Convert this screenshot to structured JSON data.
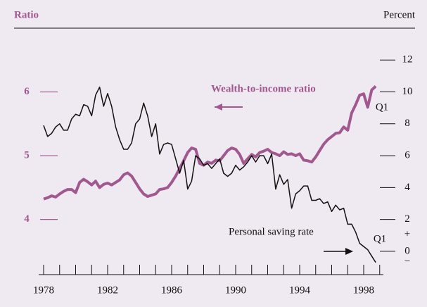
{
  "chart_data": {
    "type": "line",
    "ylabel": "Ratio",
    "y2label": "Percent",
    "x": [
      1978,
      1978.25,
      1978.5,
      1978.75,
      1979,
      1979.25,
      1979.5,
      1979.75,
      1980,
      1980.25,
      1980.5,
      1980.75,
      1981,
      1981.25,
      1981.5,
      1981.75,
      1982,
      1982.25,
      1982.5,
      1982.75,
      1983,
      1983.25,
      1983.5,
      1983.75,
      1984,
      1984.25,
      1984.5,
      1984.75,
      1985,
      1985.25,
      1985.5,
      1985.75,
      1986,
      1986.25,
      1986.5,
      1986.75,
      1987,
      1987.25,
      1987.5,
      1987.75,
      1988,
      1988.25,
      1988.5,
      1988.75,
      1989,
      1989.25,
      1989.5,
      1989.75,
      1990,
      1990.25,
      1990.5,
      1990.75,
      1991,
      1991.25,
      1991.5,
      1991.75,
      1992,
      1992.25,
      1992.5,
      1992.75,
      1993,
      1993.25,
      1993.5,
      1993.75,
      1994,
      1994.25,
      1994.5,
      1994.75,
      1995,
      1995.25,
      1995.5,
      1995.75,
      1996,
      1996.25,
      1996.5,
      1996.75,
      1997,
      1997.25,
      1997.5,
      1997.75,
      1998,
      1998.25,
      1998.5,
      1998.75
    ],
    "series": [
      {
        "name": "Wealth-to-income ratio",
        "color": "#a0588f",
        "axis": "y",
        "values": [
          4.32,
          4.34,
          4.37,
          4.35,
          4.4,
          4.44,
          4.47,
          4.47,
          4.42,
          4.58,
          4.63,
          4.59,
          4.54,
          4.6,
          4.5,
          4.55,
          4.57,
          4.54,
          4.58,
          4.62,
          4.7,
          4.73,
          4.68,
          4.58,
          4.48,
          4.4,
          4.36,
          4.38,
          4.4,
          4.47,
          4.48,
          4.5,
          4.58,
          4.68,
          4.8,
          4.92,
          5.05,
          5.12,
          5.1,
          4.88,
          4.85,
          4.9,
          4.88,
          4.93,
          4.92,
          5.0,
          5.08,
          5.12,
          5.1,
          5.02,
          4.88,
          4.95,
          5.02,
          4.98,
          5.05,
          5.07,
          5.1,
          5.05,
          5.03,
          5.0,
          5.06,
          5.02,
          5.03,
          5.0,
          5.03,
          4.93,
          4.92,
          4.9,
          4.98,
          5.08,
          5.18,
          5.25,
          5.3,
          5.35,
          5.36,
          5.45,
          5.4,
          5.67,
          5.8,
          5.95,
          5.97,
          5.76,
          6.03,
          6.09
        ]
      },
      {
        "name": "Personal saving rate",
        "color": "#111111",
        "axis": "y2",
        "values": [
          7.9,
          7.2,
          7.4,
          7.8,
          8.0,
          7.6,
          7.6,
          8.3,
          8.6,
          8.5,
          9.2,
          9.1,
          8.5,
          9.8,
          10.3,
          9.1,
          9.9,
          9.1,
          7.8,
          7.0,
          6.4,
          6.4,
          6.8,
          8.0,
          8.3,
          9.3,
          8.5,
          7.2,
          8.0,
          6.1,
          6.7,
          6.8,
          6.7,
          5.8,
          4.9,
          5.7,
          3.9,
          4.4,
          6.0,
          5.8,
          5.4,
          5.5,
          5.2,
          5.5,
          5.8,
          4.9,
          4.7,
          4.9,
          5.4,
          5.1,
          5.3,
          5.6,
          6.0,
          5.6,
          6.0,
          6.0,
          5.5,
          6.1,
          3.9,
          4.8,
          4.2,
          4.5,
          2.7,
          3.6,
          3.8,
          4.1,
          4.1,
          3.2,
          3.2,
          3.3,
          3.0,
          3.1,
          2.5,
          2.9,
          2.6,
          2.7,
          1.7,
          1.7,
          1.2,
          0.5,
          0.3,
          0.1,
          -0.3,
          -0.7
        ]
      }
    ],
    "annotations": [
      "Q1",
      "Q1",
      "+",
      "−"
    ],
    "xlim": [
      1976,
      2000
    ],
    "xticks": [
      1978,
      1982,
      1986,
      1990,
      1994,
      1998
    ],
    "xminor_ticks": [
      1978,
      1979,
      1980,
      1981,
      1982,
      1983,
      1984,
      1985,
      1986,
      1987,
      1988,
      1989,
      1990,
      1991,
      1992,
      1993,
      1994,
      1995,
      1996,
      1997,
      1998,
      1999
    ],
    "ylim": [
      3.3,
      7.0
    ],
    "yticks": [
      4,
      5,
      6
    ],
    "y2lim": [
      -0.8,
      14
    ],
    "y2ticks": [
      0,
      2,
      4,
      6,
      8,
      10,
      12
    ]
  }
}
